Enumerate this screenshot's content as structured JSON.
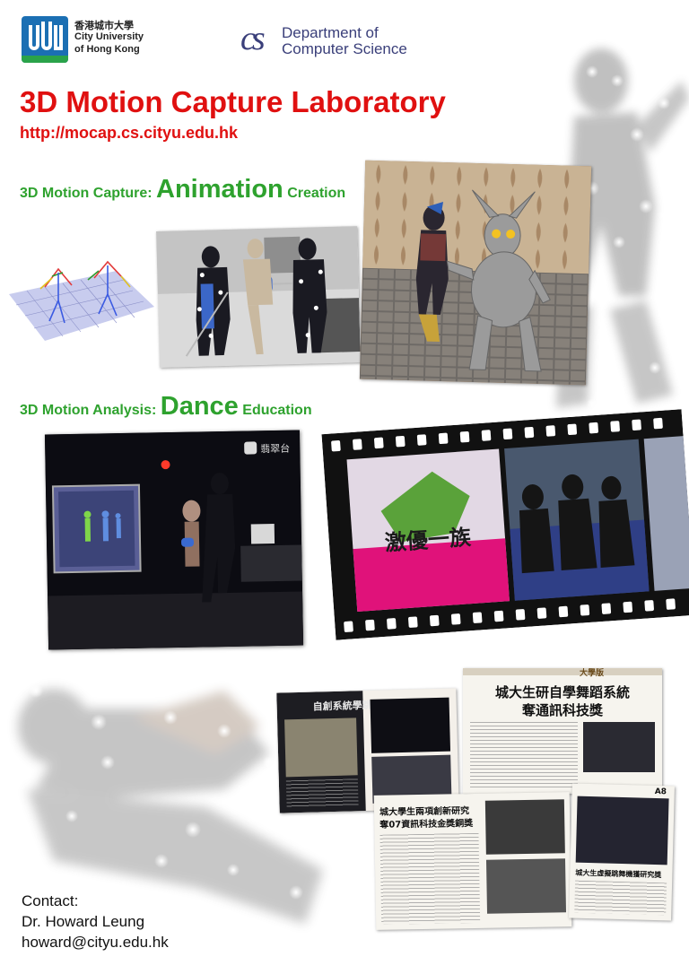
{
  "header": {
    "university_chinese": "香港城市大學",
    "university_english_line1": "City University",
    "university_english_line2": "of Hong Kong",
    "department_mark": "cs",
    "department_line1": "Department of",
    "department_line2": "Computer Science"
  },
  "title": "3D Motion Capture Laboratory",
  "url": "http://mocap.cs.cityu.edu.hk",
  "section1": {
    "prefix": "3D Motion Capture:",
    "keyword": "Animation",
    "suffix": "Creation"
  },
  "section2": {
    "prefix": "3D Motion Analysis:",
    "keyword": "Dance",
    "suffix": "Education"
  },
  "press": {
    "magazine_title": "自創系統學跳舞",
    "paper1_section": "大學版",
    "paper1_headline_line1": "城大生研自學舞蹈系統",
    "paper1_headline_line2": "奪通訊科技獎",
    "paper2_headline_line1": "城大學生兩項創新研究",
    "paper2_headline_line2": "奪07資訊科技金獎銅獎",
    "paper3_headline": "城大生虛擬跳舞機獲研究獎",
    "paper3_page": "A8"
  },
  "tv_channel": "翡翠台",
  "show_title": "激優一族",
  "contact": {
    "label": "Contact:",
    "name": "Dr. Howard Leung",
    "email": "howard@cityu.edu.hk"
  },
  "colors": {
    "title_red": "#e01010",
    "section_green": "#2ea22e",
    "department_blue": "#3a3f7a",
    "cityu_blue": "#1b6fb3",
    "cityu_green": "#2aa34a"
  }
}
